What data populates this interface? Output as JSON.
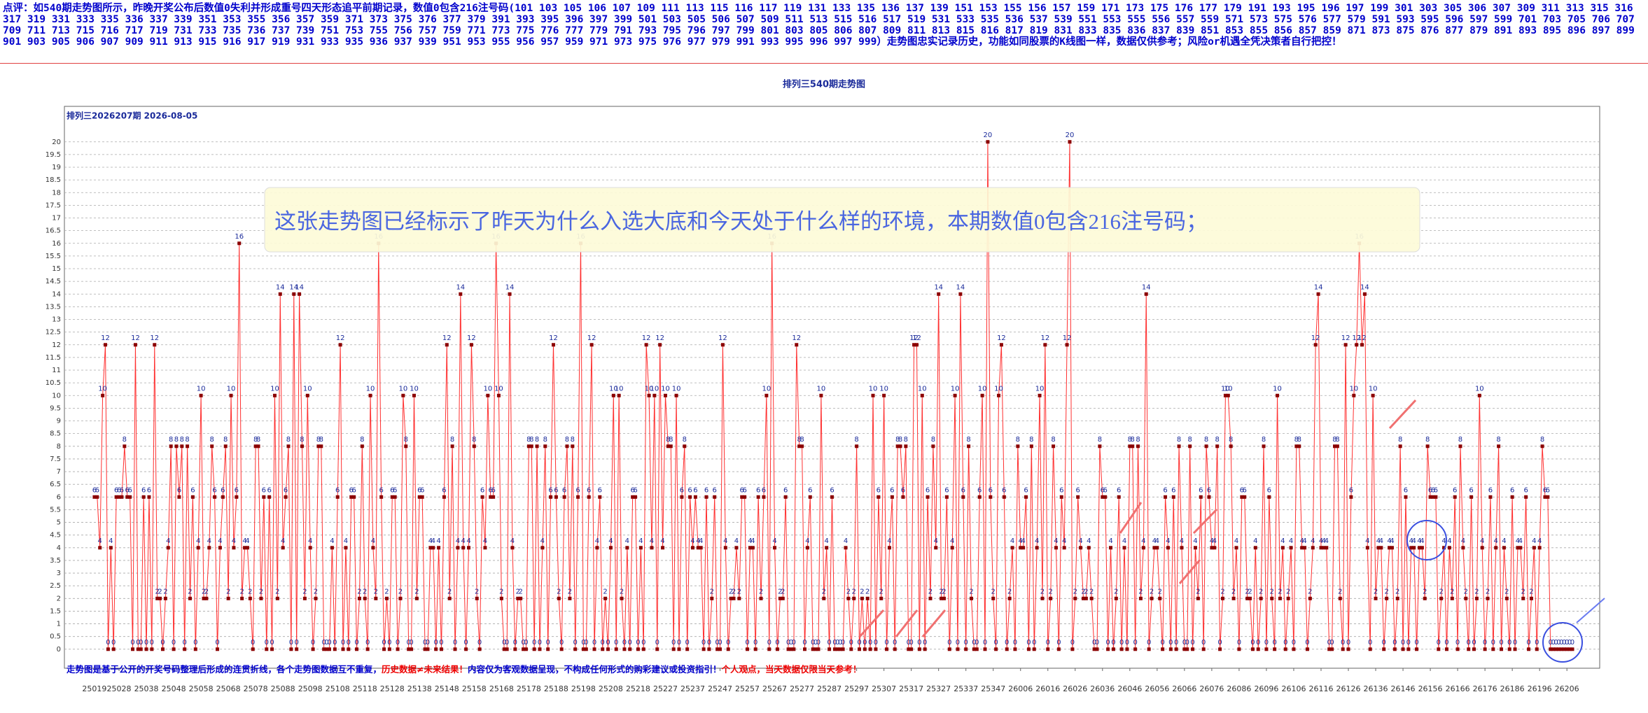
{
  "header": {
    "comment": "点评：如540期走势图所示，昨晚开奖公布后数值0失利并形成重号四天形态追平前期记录，数值0包含216注号码(101 103 105 106 107 109 111 113 115 116 117 119 131 133 135 136 137 139 151 153 155 156 157 159 171 173 175 176 177 179 191 193 195 196 197 199 301 303 305 306 307 309 311 313 315 316 317 319 331 333 335 336 337 339 351 353 355 356 357 359 371 373 375 376 377 379 391 393 395 396 397 399 501 503 505 506 507 509 511 513 515 516 517 519 531 533 535 536 537 539 551 553 555 556 557 559 571 573 575 576 577 579 591 593 595 596 597 599 701 703 705 706 707 709 711 713 715 716 717 719 731 733 735 736 737 739 751 753 755 756 757 759 771 773 775 776 777 779 791 793 795 796 797 799 801 803 805 806 807 809 811 813 815 816 817 819 831 833 835 836 837 839 851 853 855 856 857 859 871 873 875 876 877 879 891 893 895 896 897 899 901 903 905 906 907 909 911 913 915 916 917 919 931 933 935 936 937 939 951 953 955 956 957 959 971 973 975 976 977 979 991 993 995 996 997 999）走势图忠实记录历史，功能如同股票的K线图一样，数据仅供参考；风险or机遇全凭决策者自行把控！"
  },
  "chart_data": {
    "type": "line",
    "title": "排列三540期走势图",
    "subtitle": "排列三2026207期  2026-08-05",
    "annotation": "这张走势图已经标示了昨天为什么入选大底和今天处于什么样的环境，本期数值0包含216注号码；",
    "footer": [
      {
        "text": "走势图是基于公开的开奖号码整理后形成的连贯折线，各个走势图数据互不重复，",
        "color": "#0000cc"
      },
      {
        "text": "历史数据≠未来结果！",
        "color": "#ee0000"
      },
      {
        "text": "内容仅为客观数据呈现，不构成任何形式的购彩建议或投资指引！",
        "color": "#0000cc"
      },
      {
        "text": "个人观点，当天数据仅限当天参考！",
        "color": "#ee0000"
      }
    ],
    "line_color": "#ff3030",
    "point_color": "#8b0000",
    "label_color": "#1a2a9a",
    "grid": true,
    "xlim": [
      -11,
      551
    ],
    "ylim": [
      -0.75,
      21.4
    ],
    "yticks": [
      0,
      0.5,
      1,
      1.5,
      2,
      2.5,
      3,
      3.5,
      4,
      4.5,
      5,
      5.5,
      6,
      6.5,
      7,
      7.5,
      8,
      8.5,
      9,
      9.5,
      10,
      10.5,
      11,
      11.5,
      12,
      12.5,
      13,
      13.5,
      14,
      14.5,
      15,
      15.5,
      16,
      16.5,
      17,
      17.5,
      18,
      18.5,
      19,
      19.5,
      20
    ],
    "xticks": [
      {
        "value": 0,
        "label": "25019"
      },
      {
        "value": 9,
        "label": "25028"
      },
      {
        "value": 19,
        "label": "25038"
      },
      {
        "value": 29,
        "label": "25048"
      },
      {
        "value": 39,
        "label": "25058"
      },
      {
        "value": 49,
        "label": "25068"
      },
      {
        "value": 59,
        "label": "25078"
      },
      {
        "value": 69,
        "label": "25088"
      },
      {
        "value": 79,
        "label": "25098"
      },
      {
        "value": 89,
        "label": "25108"
      },
      {
        "value": 99,
        "label": "25118"
      },
      {
        "value": 109,
        "label": "25128"
      },
      {
        "value": 119,
        "label": "25138"
      },
      {
        "value": 129,
        "label": "25148"
      },
      {
        "value": 139,
        "label": "25158"
      },
      {
        "value": 149,
        "label": "25168"
      },
      {
        "value": 159,
        "label": "25178"
      },
      {
        "value": 169,
        "label": "25188"
      },
      {
        "value": 179,
        "label": "25198"
      },
      {
        "value": 189,
        "label": "25208"
      },
      {
        "value": 199,
        "label": "25218"
      },
      {
        "value": 209,
        "label": "25227"
      },
      {
        "value": 219,
        "label": "25237"
      },
      {
        "value": 229,
        "label": "25247"
      },
      {
        "value": 239,
        "label": "25257"
      },
      {
        "value": 249,
        "label": "25267"
      },
      {
        "value": 259,
        "label": "25277"
      },
      {
        "value": 269,
        "label": "25287"
      },
      {
        "value": 279,
        "label": "25297"
      },
      {
        "value": 289,
        "label": "25307"
      },
      {
        "value": 299,
        "label": "25317"
      },
      {
        "value": 309,
        "label": "25327"
      },
      {
        "value": 319,
        "label": "25337"
      },
      {
        "value": 329,
        "label": "25347"
      },
      {
        "value": 339,
        "label": "26006"
      },
      {
        "value": 349,
        "label": "26016"
      },
      {
        "value": 359,
        "label": "26026"
      },
      {
        "value": 369,
        "label": "26036"
      },
      {
        "value": 379,
        "label": "26046"
      },
      {
        "value": 389,
        "label": "26056"
      },
      {
        "value": 399,
        "label": "26066"
      },
      {
        "value": 409,
        "label": "26076"
      },
      {
        "value": 419,
        "label": "26086"
      },
      {
        "value": 429,
        "label": "26096"
      },
      {
        "value": 439,
        "label": "26106"
      },
      {
        "value": 449,
        "label": "26116"
      },
      {
        "value": 459,
        "label": "26126"
      },
      {
        "value": 469,
        "label": "26136"
      },
      {
        "value": 479,
        "label": "26146"
      },
      {
        "value": 489,
        "label": "26156"
      },
      {
        "value": 499,
        "label": "26166"
      },
      {
        "value": 509,
        "label": "26176"
      },
      {
        "value": 519,
        "label": "26186"
      },
      {
        "value": 529,
        "label": "26196"
      },
      {
        "value": 539,
        "label": "26206"
      }
    ],
    "values": [
      6,
      6,
      4,
      10,
      12,
      0,
      4,
      0,
      6,
      6,
      6,
      8,
      6,
      6,
      0,
      12,
      0,
      0,
      6,
      0,
      6,
      0,
      12,
      2,
      2,
      0,
      2,
      4,
      8,
      0,
      8,
      6,
      8,
      0,
      8,
      2,
      6,
      0,
      4,
      10,
      2,
      2,
      4,
      8,
      6,
      0,
      4,
      6,
      8,
      2,
      10,
      4,
      6,
      16,
      2,
      4,
      4,
      2,
      0,
      8,
      8,
      2,
      6,
      0,
      6,
      0,
      10,
      2,
      14,
      4,
      6,
      8,
      0,
      14,
      0,
      14,
      8,
      2,
      10,
      4,
      0,
      2,
      8,
      8,
      0,
      0,
      0,
      4,
      0,
      6,
      12,
      0,
      4,
      0,
      6,
      6,
      0,
      2,
      8,
      2,
      0,
      10,
      4,
      2,
      16,
      6,
      0,
      2,
      0,
      6,
      6,
      0,
      2,
      10,
      8,
      0,
      0,
      10,
      2,
      6,
      6,
      0,
      0,
      4,
      4,
      0,
      4,
      0,
      6,
      12,
      2,
      8,
      0,
      4,
      14,
      4,
      0,
      4,
      12,
      8,
      2,
      0,
      6,
      4,
      10,
      6,
      6,
      16,
      10,
      2,
      0,
      0,
      14,
      4,
      0,
      2,
      2,
      0,
      0,
      8,
      8,
      0,
      8,
      0,
      4,
      8,
      0,
      6,
      12,
      6,
      2,
      0,
      6,
      8,
      2,
      8,
      0,
      6,
      16,
      0,
      0,
      6,
      12,
      0,
      4,
      6,
      0,
      2,
      0,
      4,
      10,
      0,
      10,
      2,
      0,
      4,
      0,
      6,
      6,
      0,
      4,
      0,
      12,
      10,
      4,
      10,
      0,
      12,
      4,
      10,
      8,
      8,
      0,
      10,
      0,
      6,
      8,
      0,
      6,
      4,
      6,
      4,
      4,
      0,
      6,
      0,
      2,
      6,
      0,
      0,
      12,
      4,
      0,
      2,
      2,
      4,
      2,
      6,
      6,
      0,
      4,
      4,
      0,
      6,
      2,
      6,
      10,
      0,
      16,
      4,
      0,
      2,
      2,
      6,
      0,
      0,
      0,
      12,
      8,
      8,
      0,
      4,
      6,
      0,
      0,
      0,
      10,
      2,
      4,
      0,
      6,
      0,
      0,
      0,
      0,
      4,
      2,
      0,
      2,
      8,
      0,
      2,
      0,
      2,
      0,
      10,
      0,
      6,
      2,
      10,
      0,
      4,
      6,
      0,
      8,
      8,
      6,
      8,
      0,
      0,
      12,
      12,
      0,
      10,
      0,
      6,
      2,
      8,
      4,
      14,
      2,
      2,
      6,
      0,
      4,
      10,
      0,
      14,
      6,
      0,
      8,
      2,
      0,
      0,
      6,
      10,
      0,
      20,
      6,
      2,
      0,
      10,
      12,
      6,
      0,
      2,
      4,
      0,
      8,
      4,
      4,
      6,
      0,
      8,
      0,
      4,
      10,
      2,
      12,
      0,
      2,
      8,
      4,
      0,
      6,
      4,
      12,
      20,
      0,
      2,
      6,
      4,
      2,
      2,
      4,
      2,
      0,
      0,
      8,
      6,
      6,
      0,
      4,
      0,
      2,
      6,
      0,
      4,
      0,
      8,
      8,
      0,
      8,
      2,
      4,
      14,
      0,
      2,
      4,
      4,
      2,
      0,
      6,
      4,
      0,
      6,
      0,
      8,
      4,
      0,
      0,
      8,
      0,
      4,
      2,
      6,
      0,
      8,
      6,
      4,
      4,
      8,
      0,
      2,
      10,
      10,
      8,
      2,
      4,
      0,
      6,
      6,
      2,
      2,
      0,
      4,
      0,
      2,
      8,
      0,
      6,
      2,
      0,
      10,
      2,
      4,
      0,
      2,
      4,
      0,
      8,
      8,
      4,
      4,
      0,
      2,
      4,
      12,
      14,
      4,
      4,
      4,
      0,
      0,
      8,
      8,
      2,
      0,
      12,
      0,
      6,
      10,
      12,
      16,
      12,
      14,
      4,
      0,
      10,
      2,
      4,
      4,
      0,
      2,
      4,
      4,
      0,
      2,
      8,
      0,
      6,
      0,
      4,
      4,
      0,
      4,
      4,
      2,
      8,
      6,
      6,
      6,
      0,
      2,
      4,
      0,
      4,
      2,
      6,
      0,
      8,
      4,
      2,
      0,
      6,
      0,
      2,
      10,
      4,
      0,
      2,
      6,
      0,
      4,
      8,
      0,
      4,
      2,
      0,
      6,
      0,
      4,
      4,
      2,
      6,
      0,
      2,
      4,
      0,
      4,
      8,
      6,
      6,
      0,
      0,
      0,
      0,
      0,
      0,
      0,
      0,
      0
    ]
  }
}
